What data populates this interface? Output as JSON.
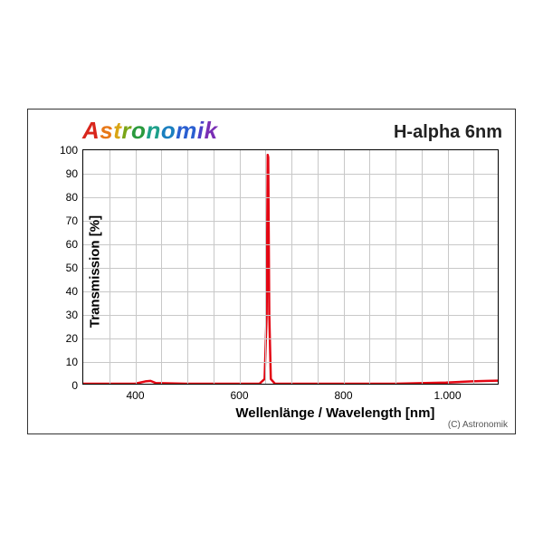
{
  "brand": {
    "text": "Astronomik",
    "letter_colors": [
      "#d9261c",
      "#e87817",
      "#d9a514",
      "#7aa516",
      "#2a9a3e",
      "#1da08a",
      "#1a7fbf",
      "#2a5fd1",
      "#4d3fc7",
      "#7a2fb5",
      "#9a2590"
    ]
  },
  "title": "H-alpha 6nm",
  "copyright": "(C) Astronomik",
  "chart": {
    "type": "line",
    "xlabel": "Wellenlänge / Wavelength [nm]",
    "ylabel": "Transmission [%]",
    "xlim": [
      300,
      1100
    ],
    "ylim": [
      0,
      100
    ],
    "xticks": [
      400,
      600,
      800,
      1000
    ],
    "xtick_labels": [
      "400",
      "600",
      "800",
      "1.000"
    ],
    "x_minor_step": 50,
    "yticks": [
      0,
      10,
      20,
      30,
      40,
      50,
      60,
      70,
      80,
      90,
      100
    ],
    "grid_color": "#c8c8c8",
    "background_color": "#ffffff",
    "border_color": "#000000",
    "line_color": "#e30613",
    "line_width": 2.5,
    "label_fontsize": 15,
    "tick_fontsize": 12,
    "title_fontsize": 20,
    "series": {
      "x": [
        300,
        400,
        420,
        430,
        440,
        500,
        600,
        640,
        650,
        654,
        656,
        657,
        659,
        662,
        670,
        700,
        800,
        900,
        1000,
        1050,
        1080,
        1100
      ],
      "y": [
        0,
        0,
        1,
        1.2,
        0.3,
        0,
        0,
        0,
        2,
        30,
        98,
        97,
        30,
        2,
        0,
        0,
        0,
        0,
        0.5,
        1,
        1.2,
        1.3
      ]
    }
  }
}
